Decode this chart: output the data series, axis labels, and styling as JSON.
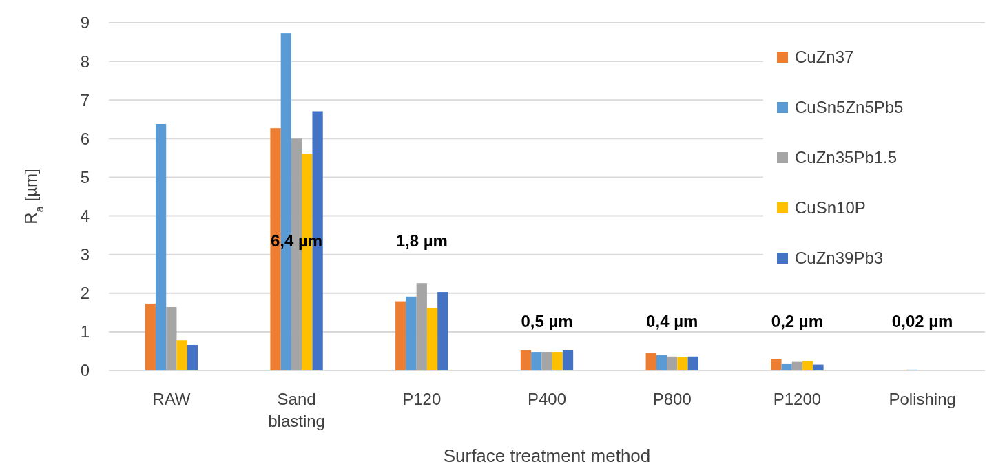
{
  "chart_data": {
    "type": "bar",
    "categories": [
      "RAW",
      "Sand blasting",
      "P120",
      "P400",
      "P800",
      "P1200",
      "Polishing"
    ],
    "xlabel": "Surface treatment method",
    "ylabel": "R$_{a}$ [µm]",
    "series": [
      {
        "name": "CuZn37",
        "color": "#ed7d31",
        "values": [
          1.73,
          6.27,
          1.79,
          0.52,
          0.46,
          0.3,
          0
        ]
      },
      {
        "name": "CuSn5Zn5Pb5",
        "color": "#5b9bd5",
        "values": [
          6.38,
          8.73,
          1.91,
          0.48,
          0.4,
          0.18,
          0.02
        ]
      },
      {
        "name": "CuZn35Pb1.5",
        "color": "#a5a5a5",
        "values": [
          1.64,
          6.0,
          2.26,
          0.48,
          0.36,
          0.22,
          0
        ]
      },
      {
        "name": "CuSn10P",
        "color": "#ffc000",
        "values": [
          0.78,
          5.61,
          1.61,
          0.48,
          0.34,
          0.24,
          0
        ]
      },
      {
        "name": "CuZn39Pb3",
        "color": "#4472c4",
        "values": [
          0.66,
          6.71,
          2.03,
          0.52,
          0.36,
          0.15,
          0
        ]
      }
    ],
    "ylim": [
      0,
      9
    ],
    "yticks": [
      0,
      1,
      2,
      3,
      4,
      5,
      6,
      7,
      8,
      9
    ],
    "grid": "y",
    "legend": "top right",
    "annotations": [
      "6,4 µm",
      "1,8 µm",
      "0,5 µm",
      "0,4 µm",
      "0,2 µm",
      "0,02 µm"
    ]
  }
}
